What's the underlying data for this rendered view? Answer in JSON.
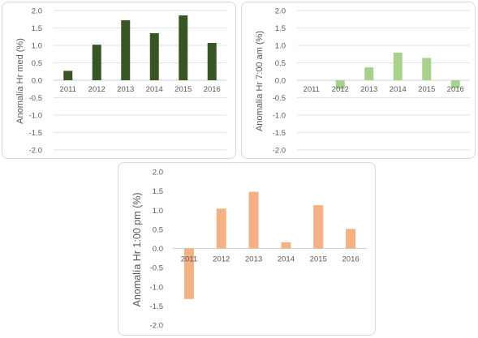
{
  "chart_data": [
    {
      "type": "bar",
      "categories": [
        "2011",
        "2012",
        "2013",
        "2014",
        "2015",
        "2016"
      ],
      "values": [
        0.27,
        1.02,
        1.72,
        1.35,
        1.86,
        1.07
      ],
      "ylabel": "Anomalía Hr med (%)",
      "ylim": [
        -2.0,
        2.0
      ],
      "yticks": [
        "2.0",
        "1.5",
        "1.0",
        "0.5",
        "0.0",
        "-0.5",
        "-1.0",
        "-1.5",
        "-2.0"
      ],
      "grid": true,
      "color": "#375623"
    },
    {
      "type": "bar",
      "categories": [
        "2011",
        "2012",
        "2013",
        "2014",
        "2015",
        "2016"
      ],
      "values": [
        0.0,
        -0.25,
        0.37,
        0.79,
        0.64,
        -0.22
      ],
      "ylabel": "Anomalía Hr 7:00 am (%)",
      "ylim": [
        -2.0,
        2.0
      ],
      "yticks": [
        "2.0",
        "1.5",
        "1.0",
        "0.5",
        "0.0",
        "-0.5",
        "-1.0",
        "-1.5",
        "-2.0"
      ],
      "grid": true,
      "color": "#a9d18e"
    },
    {
      "type": "bar",
      "categories": [
        "2011",
        "2012",
        "2013",
        "2014",
        "2015",
        "2016"
      ],
      "values": [
        -1.32,
        1.04,
        1.48,
        0.16,
        1.13,
        0.51
      ],
      "ylabel": "Anomalía Hr 1:00 pm (%)",
      "ylim": [
        -2.0,
        2.0
      ],
      "yticks": [
        "2.0",
        "1.5",
        "1.0",
        "0.5",
        "0.0",
        "-0.5",
        "-1.0",
        "-1.5",
        "-2.0"
      ],
      "grid": false,
      "color": "#f4b183"
    }
  ]
}
